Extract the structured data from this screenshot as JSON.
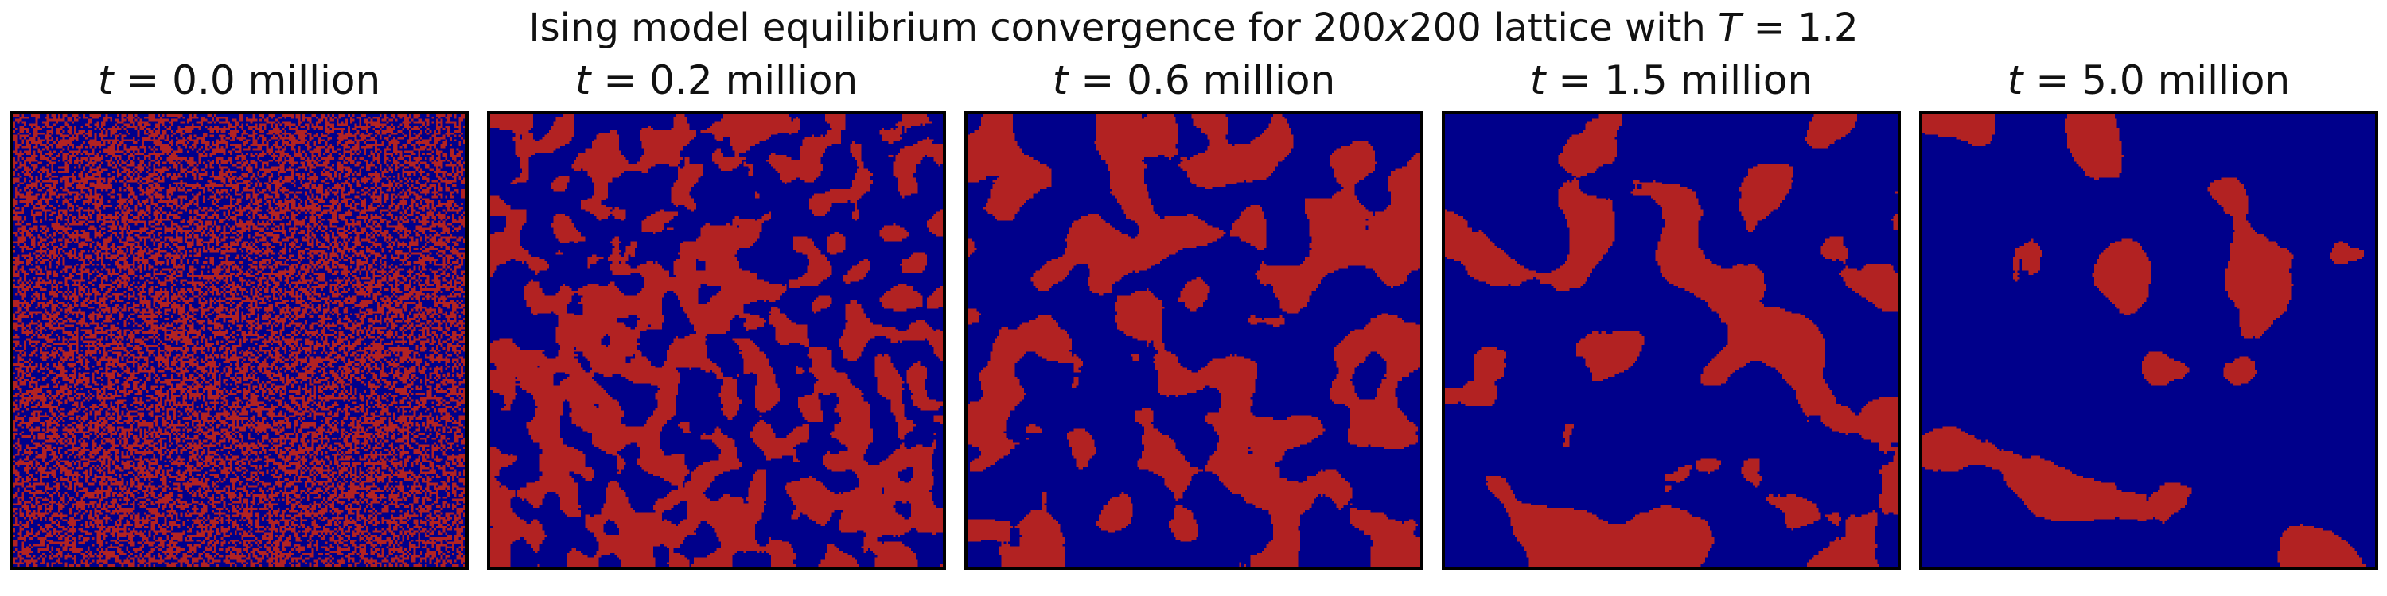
{
  "chart_data": {
    "type": "heatmap",
    "title": "Ising model equilibrium convergence for 200x200 lattice with T = 1.2",
    "title_parts": {
      "prefix": "Ising model equilibrium convergence for ",
      "size": "200",
      "x": "x",
      "size2": "200",
      "middle": " lattice with ",
      "T": "T",
      "eq": " = ",
      "temp": "1.2"
    },
    "lattice": [
      200,
      200
    ],
    "temperature": 1.2,
    "colormap": {
      "spin_up": "#b22222",
      "spin_down": "#00008b"
    },
    "panels": [
      {
        "t_var": "t",
        "eq": " = ",
        "time": "0.0",
        "unit": " million",
        "up_fraction": 0.5,
        "pattern": "random-noise",
        "blob_scale": 1
      },
      {
        "t_var": "t",
        "eq": " = ",
        "time": "0.2",
        "unit": " million",
        "up_fraction": 0.47,
        "pattern": "fine-domains",
        "blob_scale": 4
      },
      {
        "t_var": "t",
        "eq": " = ",
        "time": "0.6",
        "unit": " million",
        "up_fraction": 0.4,
        "pattern": "medium-domains",
        "blob_scale": 7
      },
      {
        "t_var": "t",
        "eq": " = ",
        "time": "1.5",
        "unit": " million",
        "up_fraction": 0.27,
        "pattern": "large-domains",
        "blob_scale": 11
      },
      {
        "t_var": "t",
        "eq": " = ",
        "time": "5.0",
        "unit": " million",
        "up_fraction": 0.15,
        "pattern": "sparse-islands",
        "blob_scale": 14
      }
    ]
  }
}
